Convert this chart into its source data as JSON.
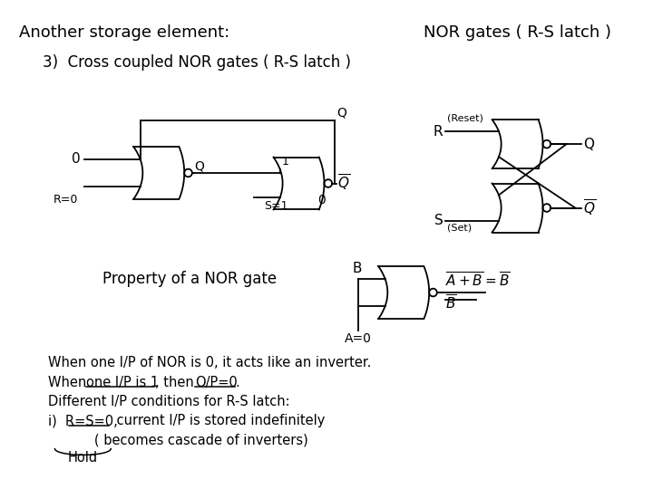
{
  "title1": "Another storage element:",
  "title2": "NOR gates ( R-S latch )",
  "subtitle": "3)  Cross coupled NOR gates ( R-S latch )",
  "bg_color": "#ffffff",
  "text_color": "#000000",
  "bottom_lines": [
    "When one I/P of NOR is 0, it acts like an inverter.",
    "When one I/P is 1, then O/P=0.",
    "Different I/P conditions for R-S latch:",
    "i)  R=S=0, current I/P is stored indefinitely",
    "           ( becomes cascade of inverters)"
  ]
}
